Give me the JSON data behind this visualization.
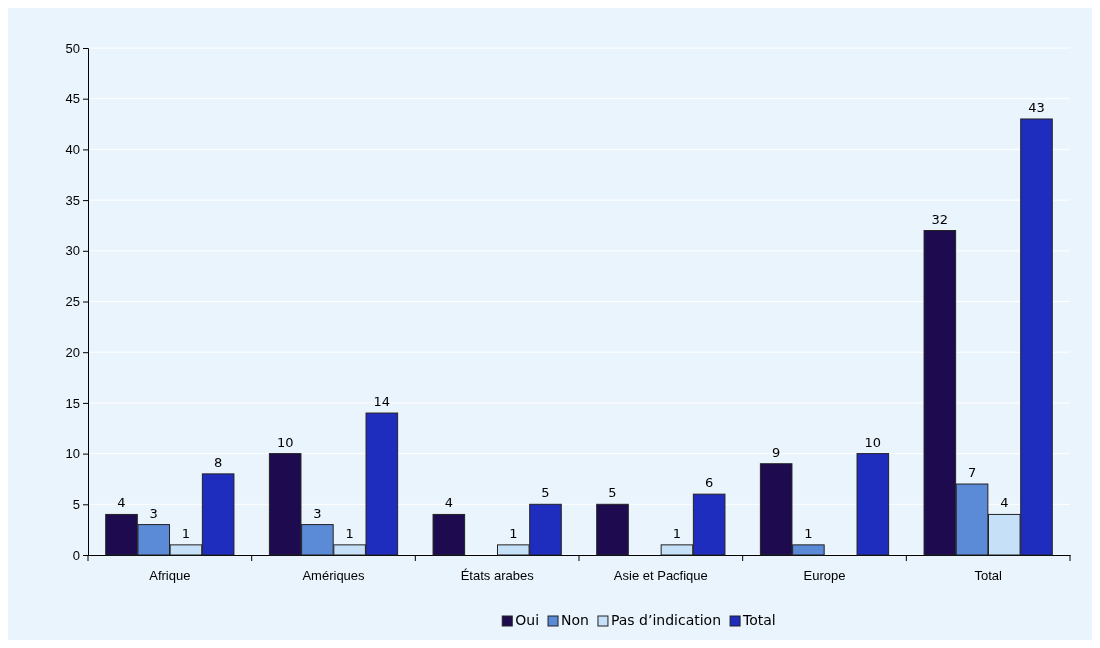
{
  "chart_data": {
    "type": "bar",
    "categories": [
      "Afrique",
      "Amériques",
      "États arabes",
      "Asie et Pacfique",
      "Europe",
      "Total"
    ],
    "series": [
      {
        "name": "Oui",
        "color": "#1e0b4f",
        "values": [
          4,
          10,
          4,
          5,
          9,
          32
        ]
      },
      {
        "name": "Non",
        "color": "#5b8ad6",
        "values": [
          3,
          3,
          null,
          null,
          1,
          7
        ]
      },
      {
        "name": "Pas d’indication",
        "color": "#c6e0f8",
        "values": [
          1,
          1,
          1,
          1,
          null,
          4
        ]
      },
      {
        "name": "Total",
        "color": "#1f2dbf",
        "values": [
          8,
          14,
          5,
          6,
          10,
          43
        ]
      }
    ],
    "ylim": [
      0,
      50
    ],
    "yticks": [
      0,
      5,
      10,
      15,
      20,
      25,
      30,
      35,
      40,
      45,
      50
    ],
    "grid": "y",
    "legend": "bottom",
    "data_labels": true
  }
}
